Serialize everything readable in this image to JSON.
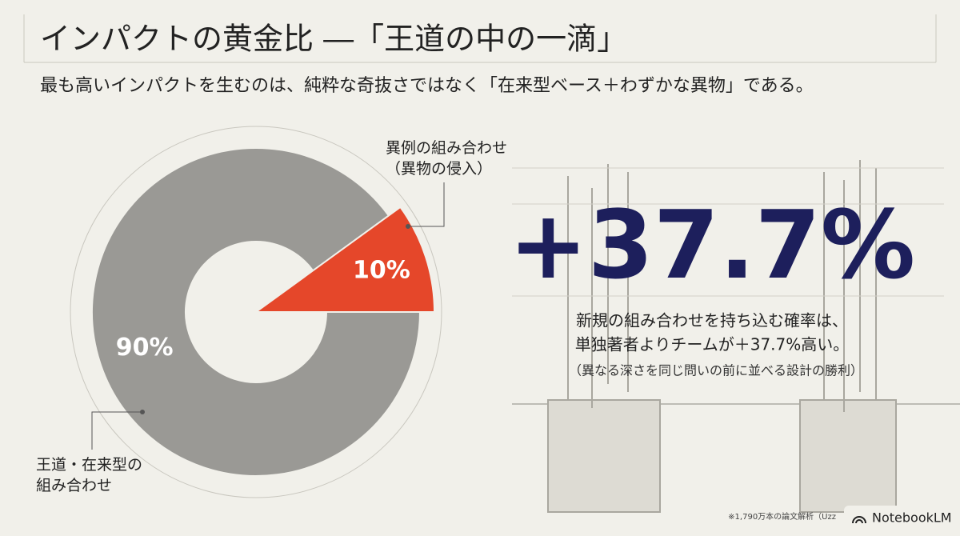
{
  "chart_data": {
    "type": "donut",
    "title": "インパクトの黄金比 ―「王道の中の一滴」",
    "subtitle": "最も高いインパクトを生むのは、純粋な奇抜さではなく「在来型ベース＋わずかな異物」である。",
    "categories": [
      "王道・在来型の\n組み合わせ",
      "異例の組み合わせ\n（異物の侵入）"
    ],
    "values": [
      90,
      10
    ],
    "value_labels": [
      "90%",
      "10%"
    ],
    "colors": [
      "#9a9995",
      "#e5472a"
    ],
    "annotations": {
      "stat": "+37.7%",
      "lines": [
        "新規の組み合わせを持ち込む確率は、",
        "単独著者よりチームが＋37.7%高い。",
        "（異なる深さを同じ問いの前に並べる設計の勝利）"
      ],
      "source": "※1,790万本の論文解析（Uzz",
      "brand": "NotebookLM"
    }
  }
}
